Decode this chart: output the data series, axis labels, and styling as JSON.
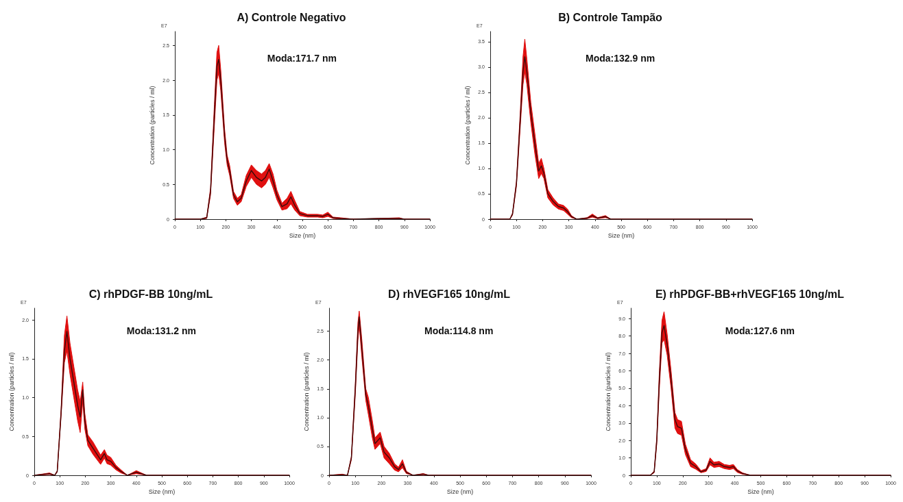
{
  "chart_data": [
    {
      "type": "line",
      "title": "A) Controle Negativo",
      "xlabel": "Size (nm)",
      "ylabel": "Concentration (particles / ml)",
      "annotations": [
        "Moda:171.7 nm",
        "E7"
      ],
      "marker": "none",
      "line_style": "solid",
      "xlim": [
        0,
        1000
      ],
      "xticks": [
        0,
        100,
        200,
        300,
        400,
        500,
        600,
        700,
        800,
        900,
        1000
      ],
      "ylim": [
        0,
        2.7
      ],
      "yticks": [
        0,
        0.5,
        {
          "value": 1,
          "label": "1.0"
        },
        1.5,
        {
          "value": 2,
          "label": "2.0"
        },
        2.5
      ],
      "x": [
        0,
        100,
        125,
        140,
        155,
        165,
        172,
        180,
        195,
        205,
        215,
        230,
        245,
        260,
        280,
        300,
        320,
        340,
        355,
        370,
        385,
        400,
        420,
        440,
        455,
        470,
        490,
        520,
        560,
        580,
        600,
        620,
        650,
        700,
        800,
        880,
        900,
        1000
      ],
      "series": [
        {
          "color": "#3d0a0a",
          "values": [
            0,
            0,
            0.02,
            0.4,
            1.5,
            2.2,
            2.3,
            2.0,
            1.2,
            0.85,
            0.7,
            0.35,
            0.25,
            0.3,
            0.55,
            0.7,
            0.6,
            0.55,
            0.6,
            0.72,
            0.55,
            0.35,
            0.18,
            0.22,
            0.32,
            0.2,
            0.08,
            0.05,
            0.05,
            0.04,
            0.07,
            0.02,
            0.01,
            0,
            0.01,
            0.01,
            0,
            0
          ],
          "lower": [
            0,
            0,
            0.01,
            0.35,
            1.35,
            2.0,
            2.1,
            1.85,
            1.1,
            0.78,
            0.63,
            0.3,
            0.2,
            0.25,
            0.47,
            0.6,
            0.5,
            0.45,
            0.5,
            0.6,
            0.45,
            0.28,
            0.13,
            0.15,
            0.22,
            0.13,
            0.05,
            0.03,
            0.03,
            0.02,
            0.04,
            0.01,
            0,
            0,
            0,
            0,
            0,
            0
          ],
          "upper": [
            0,
            0,
            0.03,
            0.45,
            1.65,
            2.4,
            2.5,
            2.15,
            1.3,
            0.92,
            0.77,
            0.4,
            0.3,
            0.35,
            0.63,
            0.78,
            0.7,
            0.65,
            0.7,
            0.8,
            0.65,
            0.42,
            0.23,
            0.3,
            0.4,
            0.27,
            0.11,
            0.07,
            0.07,
            0.06,
            0.1,
            0.03,
            0.02,
            0,
            0.01,
            0.02,
            0,
            0
          ]
        }
      ]
    },
    {
      "type": "line",
      "title": "B) Controle Tampão",
      "xlabel": "Size (nm)",
      "ylabel": "Concentration (particles / ml)",
      "annotations": [
        "Moda:132.9 nm",
        "E7"
      ],
      "marker": "none",
      "line_style": "solid",
      "xlim": [
        0,
        1000
      ],
      "xticks": [
        0,
        100,
        200,
        300,
        400,
        500,
        600,
        700,
        800,
        900,
        1000
      ],
      "ylim": [
        0,
        3.7
      ],
      "yticks": [
        0,
        0.5,
        {
          "value": 1,
          "label": "1.0"
        },
        1.5,
        {
          "value": 2,
          "label": "2.0"
        },
        2.5,
        {
          "value": 3,
          "label": "3.0"
        },
        3.5
      ],
      "x": [
        0,
        75,
        85,
        100,
        115,
        125,
        132,
        140,
        155,
        170,
        185,
        195,
        205,
        220,
        240,
        260,
        280,
        295,
        310,
        330,
        370,
        390,
        410,
        440,
        460,
        1000
      ],
      "series": [
        {
          "color": "#3d0a0a",
          "values": [
            0,
            0,
            0.1,
            0.7,
            2.0,
            2.9,
            3.2,
            2.9,
            2.1,
            1.5,
            0.95,
            1.05,
            0.9,
            0.5,
            0.35,
            0.25,
            0.22,
            0.15,
            0.05,
            0,
            0.02,
            0.07,
            0.02,
            0.05,
            0,
            0
          ],
          "lower": [
            0,
            0,
            0.08,
            0.65,
            1.85,
            2.65,
            2.9,
            2.65,
            1.9,
            1.3,
            0.8,
            0.9,
            0.8,
            0.42,
            0.28,
            0.2,
            0.17,
            0.1,
            0.03,
            0,
            0.01,
            0.04,
            0.01,
            0.03,
            0,
            0
          ],
          "upper": [
            0,
            0,
            0.12,
            0.75,
            2.15,
            3.2,
            3.55,
            3.15,
            2.3,
            1.7,
            1.1,
            1.2,
            1.0,
            0.58,
            0.42,
            0.3,
            0.27,
            0.2,
            0.07,
            0,
            0.03,
            0.1,
            0.03,
            0.07,
            0,
            0
          ]
        }
      ]
    },
    {
      "type": "line",
      "title": "C) rhPDGF-BB 10ng/mL",
      "xlabel": "Size (nm)",
      "ylabel": "Concentration (particles / ml)",
      "annotations": [
        "Moda:131.2 nm",
        "E7"
      ],
      "marker": "none",
      "line_style": "solid",
      "xlim": [
        0,
        1000
      ],
      "xticks": [
        0,
        100,
        200,
        300,
        400,
        500,
        600,
        700,
        800,
        900,
        1000
      ],
      "ylim": [
        0,
        2.15
      ],
      "yticks": [
        0,
        0.5,
        {
          "value": 1,
          "label": "1.0"
        },
        1.5,
        {
          "value": 2,
          "label": "2.0"
        }
      ],
      "x": [
        0,
        60,
        80,
        90,
        105,
        118,
        128,
        140,
        155,
        170,
        180,
        190,
        198,
        210,
        230,
        260,
        275,
        285,
        300,
        320,
        340,
        365,
        400,
        420,
        440,
        1000
      ],
      "series": [
        {
          "color": "#3d0a0a",
          "values": [
            0,
            0.02,
            0,
            0.05,
            0.8,
            1.6,
            1.85,
            1.5,
            1.2,
            0.9,
            0.75,
            1.1,
            0.7,
            0.45,
            0.35,
            0.2,
            0.28,
            0.2,
            0.18,
            0.1,
            0.05,
            0,
            0.04,
            0.02,
            0,
            0
          ],
          "lower": [
            0,
            0.01,
            0,
            0.04,
            0.75,
            1.45,
            1.6,
            1.3,
            1.0,
            0.7,
            0.55,
            0.95,
            0.6,
            0.38,
            0.27,
            0.14,
            0.22,
            0.15,
            0.13,
            0.07,
            0.03,
            0,
            0.02,
            0.01,
            0,
            0
          ],
          "upper": [
            0,
            0.03,
            0,
            0.06,
            0.85,
            1.8,
            2.05,
            1.7,
            1.4,
            1.1,
            0.95,
            1.2,
            0.8,
            0.52,
            0.43,
            0.26,
            0.33,
            0.26,
            0.23,
            0.13,
            0.07,
            0,
            0.06,
            0.03,
            0,
            0
          ]
        }
      ]
    },
    {
      "type": "line",
      "title": "D) rhVEGF165 10ng/mL",
      "xlabel": "Size (nm)",
      "ylabel": "Concentration (particles / ml)",
      "annotations": [
        "Moda:114.8 nm",
        "E7"
      ],
      "marker": "none",
      "line_style": "solid",
      "xlim": [
        0,
        1000
      ],
      "xticks": [
        0,
        100,
        200,
        300,
        400,
        500,
        600,
        700,
        800,
        900,
        1000
      ],
      "ylim": [
        0,
        2.9
      ],
      "yticks": [
        0,
        0.5,
        {
          "value": 1,
          "label": "1.0"
        },
        1.5,
        {
          "value": 2,
          "label": "2.0"
        },
        2.5
      ],
      "x": [
        0,
        50,
        70,
        85,
        100,
        110,
        115,
        125,
        140,
        150,
        165,
        175,
        195,
        210,
        230,
        250,
        265,
        280,
        295,
        320,
        360,
        380,
        1000
      ],
      "series": [
        {
          "color": "#3d0a0a",
          "values": [
            0,
            0.01,
            0,
            0.3,
            1.5,
            2.5,
            2.75,
            2.2,
            1.4,
            1.2,
            0.8,
            0.55,
            0.65,
            0.4,
            0.3,
            0.15,
            0.1,
            0.2,
            0.05,
            0,
            0.02,
            0,
            0
          ],
          "lower": [
            0,
            0,
            0,
            0.27,
            1.4,
            2.35,
            2.6,
            2.05,
            1.3,
            1.05,
            0.65,
            0.45,
            0.55,
            0.3,
            0.2,
            0.09,
            0.06,
            0.13,
            0.03,
            0,
            0.01,
            0,
            0
          ],
          "upper": [
            0,
            0.02,
            0,
            0.33,
            1.6,
            2.65,
            2.85,
            2.35,
            1.5,
            1.35,
            0.95,
            0.65,
            0.75,
            0.5,
            0.38,
            0.2,
            0.14,
            0.27,
            0.07,
            0,
            0.03,
            0,
            0
          ]
        }
      ]
    },
    {
      "type": "line",
      "title": "E) rhPDGF-BB+rhVEGF165 10ng/mL",
      "xlabel": "Size (nm)",
      "ylabel": "Concentration (particles / ml)",
      "annotations": [
        "Moda:127.6 nm",
        "E7"
      ],
      "marker": "none",
      "line_style": "solid",
      "xlim": [
        0,
        1000
      ],
      "xticks": [
        0,
        100,
        200,
        300,
        400,
        500,
        600,
        700,
        800,
        900,
        1000
      ],
      "ylim": [
        0,
        9.6
      ],
      "yticks": [
        0,
        {
          "value": 1,
          "label": "1.0"
        },
        {
          "value": 2,
          "label": "2.0"
        },
        {
          "value": 3,
          "label": "3.0"
        },
        {
          "value": 4,
          "label": "4.0"
        },
        {
          "value": 5,
          "label": "5.0"
        },
        {
          "value": 6,
          "label": "6.0"
        },
        {
          "value": 7,
          "label": "7.0"
        },
        {
          "value": 8,
          "label": "8.0"
        },
        {
          "value": 9,
          "label": "9.0"
        }
      ],
      "x": [
        0,
        75,
        90,
        100,
        110,
        120,
        128,
        140,
        155,
        170,
        180,
        195,
        210,
        230,
        250,
        270,
        290,
        305,
        320,
        340,
        360,
        380,
        395,
        410,
        430,
        460,
        1000
      ],
      "series": [
        {
          "color": "#3d0a0a",
          "values": [
            0,
            0,
            0.2,
            2,
            5.5,
            8.2,
            8.6,
            7.5,
            5.5,
            3.2,
            2.8,
            2.7,
            1.5,
            0.7,
            0.5,
            0.2,
            0.3,
            0.8,
            0.6,
            0.65,
            0.5,
            0.45,
            0.5,
            0.25,
            0.1,
            0,
            0
          ],
          "lower": [
            0,
            0,
            0.15,
            1.8,
            5.0,
            7.6,
            7.8,
            6.9,
            5.0,
            2.7,
            2.4,
            2.3,
            1.2,
            0.5,
            0.35,
            0.15,
            0.22,
            0.6,
            0.45,
            0.5,
            0.38,
            0.33,
            0.38,
            0.17,
            0.06,
            0,
            0
          ],
          "upper": [
            0,
            0,
            0.25,
            2.2,
            6.0,
            8.9,
            9.4,
            8.1,
            6.0,
            3.6,
            3.2,
            3.1,
            1.8,
            0.9,
            0.65,
            0.27,
            0.38,
            1.0,
            0.75,
            0.8,
            0.62,
            0.57,
            0.62,
            0.33,
            0.14,
            0,
            0
          ]
        }
      ]
    }
  ]
}
